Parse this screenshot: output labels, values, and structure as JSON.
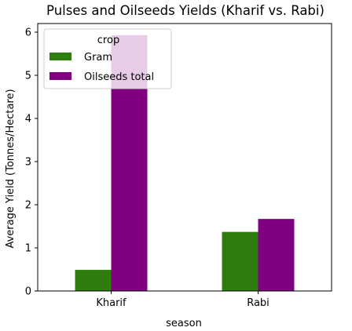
{
  "chart_data": {
    "type": "bar",
    "title": "Pulses and Oilseeds Yields (Kharif vs. Rabi)",
    "xlabel": "season",
    "ylabel": "Average Yield (Tonnes/Hectare)",
    "categories": [
      "Kharif",
      "Rabi"
    ],
    "ylim": [
      0,
      6.2
    ],
    "yticks": [
      0,
      1,
      2,
      3,
      4,
      5,
      6
    ],
    "grid": false,
    "legend": {
      "title": "crop",
      "placement": "top-left"
    },
    "series": [
      {
        "name": "Gram",
        "color": "#2e7d0e",
        "values": [
          0.49,
          1.37
        ]
      },
      {
        "name": "Oilseeds total",
        "color": "#800080",
        "values": [
          5.93,
          1.67
        ]
      }
    ]
  }
}
